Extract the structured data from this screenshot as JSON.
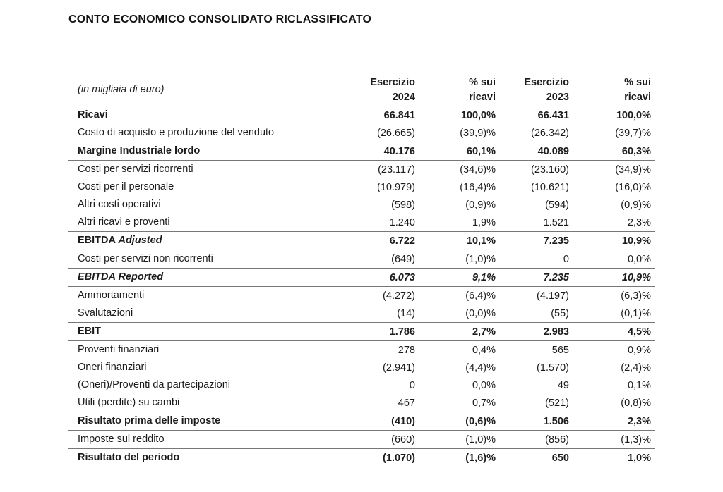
{
  "title": "CONTO ECONOMICO CONSOLIDATO RICLASSIFICATO",
  "table": {
    "unit_label": "(in migliaia di euro)",
    "columns": [
      {
        "line1": "Esercizio",
        "line2": "2024"
      },
      {
        "line1": "% sui",
        "line2": "ricavi"
      },
      {
        "line1": "Esercizio",
        "line2": "2023"
      },
      {
        "line1": "% sui",
        "line2": "ricavi"
      }
    ],
    "rows": [
      {
        "label": "Ricavi",
        "style": "bold",
        "rule_top": true,
        "values": [
          "66.841",
          "100,0%",
          "66.431",
          "100,0%"
        ]
      },
      {
        "label": "Costo di acquisto e produzione del venduto",
        "style": "regular",
        "rule_top": false,
        "values": [
          "(26.665)",
          "(39,9)%",
          "(26.342)",
          "(39,7)%"
        ]
      },
      {
        "label": "Margine Industriale lordo",
        "style": "bold",
        "rule_top": true,
        "values": [
          "40.176",
          "60,1%",
          "40.089",
          "60,3%"
        ]
      },
      {
        "label": "Costi per servizi ricorrenti",
        "style": "regular",
        "rule_top": true,
        "values": [
          "(23.117)",
          "(34,6)%",
          "(23.160)",
          "(34,9)%"
        ]
      },
      {
        "label": "Costi per il personale",
        "style": "regular",
        "rule_top": false,
        "values": [
          "(10.979)",
          "(16,4)%",
          "(10.621)",
          "(16,0)%"
        ]
      },
      {
        "label": "Altri costi operativi",
        "style": "regular",
        "rule_top": false,
        "values": [
          "(598)",
          "(0,9)%",
          "(594)",
          "(0,9)%"
        ]
      },
      {
        "label": "Altri ricavi e proventi",
        "style": "regular",
        "rule_top": false,
        "values": [
          "1.240",
          "1,9%",
          "1.521",
          "2,3%"
        ]
      },
      {
        "label": "EBITDA",
        "label_em": "Adjusted",
        "style": "bold",
        "rule_top": true,
        "values": [
          "6.722",
          "10,1%",
          "7.235",
          "10,9%"
        ]
      },
      {
        "label": "Costi per servizi non ricorrenti",
        "style": "regular",
        "rule_top": true,
        "values": [
          "(649)",
          "(1,0)%",
          "0",
          "0,0%"
        ]
      },
      {
        "label": "EBITDA Reported",
        "style": "bold-italic",
        "rule_top": true,
        "values": [
          "6.073",
          "9,1%",
          "7.235",
          "10,9%"
        ]
      },
      {
        "label": "Ammortamenti",
        "style": "regular",
        "rule_top": true,
        "values": [
          "(4.272)",
          "(6,4)%",
          "(4.197)",
          "(6,3)%"
        ]
      },
      {
        "label": "Svalutazioni",
        "style": "regular",
        "rule_top": false,
        "values": [
          "(14)",
          "(0,0)%",
          "(55)",
          "(0,1)%"
        ]
      },
      {
        "label": "EBIT",
        "style": "bold",
        "rule_top": true,
        "values": [
          "1.786",
          "2,7%",
          "2.983",
          "4,5%"
        ]
      },
      {
        "label": "Proventi finanziari",
        "style": "regular",
        "rule_top": true,
        "values": [
          "278",
          "0,4%",
          "565",
          "0,9%"
        ]
      },
      {
        "label": "Oneri finanziari",
        "style": "regular",
        "rule_top": false,
        "values": [
          "(2.941)",
          "(4,4)%",
          "(1.570)",
          "(2,4)%"
        ]
      },
      {
        "label": "(Oneri)/Proventi da partecipazioni",
        "style": "regular",
        "rule_top": false,
        "values": [
          "0",
          "0,0%",
          "49",
          "0,1%"
        ]
      },
      {
        "label": "Utili (perdite) su cambi",
        "style": "regular",
        "rule_top": false,
        "values": [
          "467",
          "0,7%",
          "(521)",
          "(0,8)%"
        ]
      },
      {
        "label": "Risultato prima delle imposte",
        "style": "bold",
        "rule_top": true,
        "values": [
          "(410)",
          "(0,6)%",
          "1.506",
          "2,3%"
        ]
      },
      {
        "label": "Imposte sul reddito",
        "style": "regular",
        "rule_top": true,
        "values": [
          "(660)",
          "(1,0)%",
          "(856)",
          "(1,3)%"
        ]
      },
      {
        "label": "Risultato del periodo",
        "style": "bold",
        "rule_top": true,
        "values": [
          "(1.070)",
          "(1,6)%",
          "650",
          "1,0%"
        ]
      }
    ],
    "colors": {
      "rule": "#777777",
      "text": "#1b1b1b",
      "background": "#ffffff"
    }
  }
}
